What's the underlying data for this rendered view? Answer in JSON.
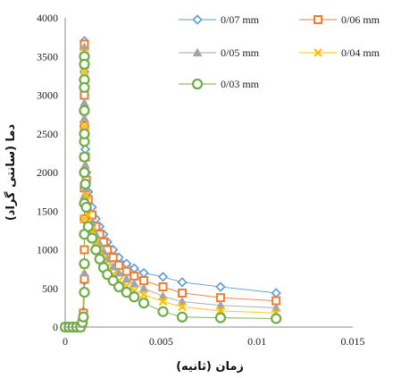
{
  "chart_data": {
    "type": "scatter",
    "xlabel": "زمان (ثانیه)",
    "ylabel": "دما (سانتی گراد)",
    "xlim": [
      0,
      0.015
    ],
    "ylim": [
      0,
      4000
    ],
    "x_ticks": [
      "0",
      "0.005",
      "0.01",
      "0.015"
    ],
    "y_ticks": [
      "0",
      "500",
      "1000",
      "1500",
      "2000",
      "2500",
      "3000",
      "3500",
      "4000"
    ],
    "grid": false,
    "legend": "top-right",
    "series": [
      {
        "name": "0/07 mm",
        "color": "#5b9bd5",
        "marker": "diamond",
        "x": [
          0,
          0.0002,
          0.0004,
          0.0006,
          0.0008,
          0.0009,
          0.00095,
          0.001,
          0.001,
          0.001,
          0.001,
          0.001,
          0.001,
          0.001,
          0.001,
          0.001,
          0.001,
          0.001,
          0.001,
          0.001,
          0.00105,
          0.0011,
          0.0012,
          0.0014,
          0.0016,
          0.0018,
          0.002,
          0.0022,
          0.0025,
          0.0028,
          0.0032,
          0.0036,
          0.0041,
          0.0051,
          0.0061,
          0.0081,
          0.011
        ],
        "y": [
          0,
          0,
          0,
          0,
          0,
          50,
          200,
          600,
          1000,
          1400,
          1800,
          2200,
          2600,
          3000,
          3300,
          3600,
          3700,
          3500,
          3000,
          2600,
          2300,
          2000,
          1750,
          1550,
          1400,
          1300,
          1200,
          1100,
          1000,
          900,
          820,
          760,
          700,
          650,
          580,
          520,
          440
        ]
      },
      {
        "name": "0/06 mm",
        "color": "#ed7d31",
        "marker": "square",
        "x": [
          0,
          0.0002,
          0.0004,
          0.0006,
          0.0008,
          0.0009,
          0.00095,
          0.001,
          0.001,
          0.001,
          0.001,
          0.001,
          0.001,
          0.001,
          0.001,
          0.001,
          0.001,
          0.001,
          0.001,
          0.00105,
          0.0011,
          0.0012,
          0.0014,
          0.0016,
          0.0018,
          0.002,
          0.0022,
          0.0025,
          0.0028,
          0.0032,
          0.0036,
          0.0041,
          0.0051,
          0.0061,
          0.0081,
          0.011
        ],
        "y": [
          0,
          0,
          0,
          0,
          0,
          60,
          180,
          620,
          1000,
          1400,
          1800,
          2200,
          2600,
          3000,
          3400,
          3660,
          3500,
          3000,
          2600,
          2200,
          1900,
          1650,
          1450,
          1300,
          1200,
          1100,
          1000,
          900,
          800,
          720,
          660,
          600,
          520,
          440,
          380,
          340
        ]
      },
      {
        "name": "0/05 mm",
        "color": "#a5a5a5",
        "marker": "triangle",
        "x": [
          0,
          0.0002,
          0.0004,
          0.0006,
          0.0008,
          0.0009,
          0.001,
          0.001,
          0.001,
          0.001,
          0.001,
          0.001,
          0.001,
          0.001,
          0.001,
          0.001,
          0.00105,
          0.0011,
          0.0012,
          0.0014,
          0.0016,
          0.0018,
          0.002,
          0.0022,
          0.0025,
          0.0028,
          0.0032,
          0.0036,
          0.0041,
          0.0051,
          0.0061,
          0.0081,
          0.011
        ],
        "y": [
          0,
          0,
          0,
          0,
          0,
          60,
          700,
          1200,
          1700,
          2200,
          2700,
          3200,
          3620,
          3400,
          2900,
          2500,
          2100,
          1800,
          1550,
          1350,
          1200,
          1080,
          980,
          880,
          780,
          700,
          620,
          560,
          500,
          400,
          330,
          280,
          250
        ]
      },
      {
        "name": "0/04 mm",
        "color": "#ffc000",
        "marker": "x",
        "x": [
          0,
          0.0002,
          0.0004,
          0.0006,
          0.0008,
          0.0009,
          0.001,
          0.001,
          0.001,
          0.001,
          0.001,
          0.001,
          0.001,
          0.001,
          0.001,
          0.00105,
          0.0011,
          0.0012,
          0.0014,
          0.0016,
          0.0018,
          0.002,
          0.0022,
          0.0025,
          0.0028,
          0.0032,
          0.0036,
          0.0041,
          0.0051,
          0.0061,
          0.0081,
          0.011
        ],
        "y": [
          0,
          0,
          0,
          0,
          0,
          50,
          800,
          1400,
          2000,
          2600,
          3100,
          3550,
          3300,
          2800,
          2400,
          2000,
          1700,
          1450,
          1250,
          1100,
          980,
          880,
          780,
          680,
          600,
          530,
          470,
          420,
          330,
          260,
          210,
          180
        ]
      },
      {
        "name": "0/03 mm",
        "color": "#70ad47",
        "marker": "circle",
        "x": [
          0,
          0.0002,
          0.0004,
          0.0006,
          0.0008,
          0.0009,
          0.00095,
          0.001,
          0.001,
          0.001,
          0.001,
          0.001,
          0.001,
          0.001,
          0.001,
          0.001,
          0.001,
          0.001,
          0.001,
          0.001,
          0.001,
          0.00105,
          0.0011,
          0.0012,
          0.0014,
          0.0016,
          0.0018,
          0.002,
          0.0022,
          0.0025,
          0.0028,
          0.0032,
          0.0036,
          0.0041,
          0.0051,
          0.0061,
          0.0081,
          0.011
        ],
        "y": [
          0,
          0,
          0,
          0,
          0,
          60,
          130,
          450,
          820,
          1200,
          1600,
          2000,
          2400,
          2800,
          3200,
          3500,
          3400,
          3100,
          2800,
          2500,
          2200,
          1850,
          1550,
          1300,
          1150,
          1000,
          880,
          770,
          680,
          600,
          520,
          450,
          390,
          310,
          200,
          130,
          120,
          110
        ]
      }
    ]
  }
}
